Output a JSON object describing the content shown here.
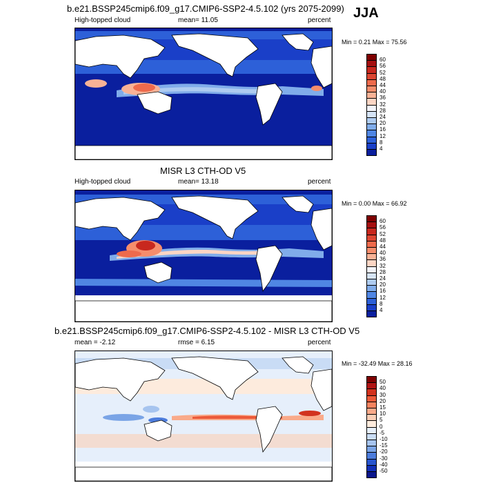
{
  "season": "JJA",
  "panels": [
    {
      "title": "b.e21.BSSP245cmip6.f09_g17.CMIP6-SSP2-4.5.102 (yrs 2075-2099)",
      "left": "High-topped cloud",
      "center": "mean=  11.05",
      "right": "percent",
      "minmax": "Min =   0.21 Max =  75.56"
    },
    {
      "title": "MISR L3 CTH-OD V5",
      "left": "High-topped cloud",
      "center": "mean=  13.18",
      "right": "percent",
      "minmax": "Min =   0.00 Max =  66.92"
    },
    {
      "title": "b.e21.BSSP245cmip6.f09_g17.CMIP6-SSP2-4.5.102 - MISR L3 CTH-OD V5",
      "left": "mean =  -2.12",
      "center": "rmse =   6.15",
      "right": "percent",
      "minmax": "Min = -32.49 Max =  28.16"
    }
  ],
  "colorbars": {
    "abs": {
      "labels": [
        "60",
        "56",
        "52",
        "48",
        "44",
        "40",
        "36",
        "32",
        "28",
        "24",
        "20",
        "16",
        "12",
        "8",
        "4"
      ],
      "colors": [
        "#7f0000",
        "#a50f0f",
        "#c8281e",
        "#dc4632",
        "#ee6a4c",
        "#f58d6c",
        "#f8b296",
        "#fbd5c4",
        "#f2f4fa",
        "#d6e4f6",
        "#aecbf0",
        "#80acea",
        "#5086e3",
        "#2d60d8",
        "#1a3fc8",
        "#0a1f9e"
      ]
    },
    "diff": {
      "labels": [
        "50",
        "40",
        "30",
        "20",
        "15",
        "10",
        "5",
        "0",
        "-5",
        "-10",
        "-15",
        "-20",
        "-30",
        "-40",
        "-50"
      ],
      "colors": [
        "#7f0000",
        "#b01414",
        "#d2321e",
        "#ec5a3a",
        "#f5835f",
        "#f9aa8a",
        "#fbceb6",
        "#fdebdd",
        "#e6effb",
        "#c9dcf5",
        "#a6c4ef",
        "#7aa4e6",
        "#4c7cdc",
        "#2855cf",
        "#1230b8",
        "#0a168c"
      ]
    }
  }
}
